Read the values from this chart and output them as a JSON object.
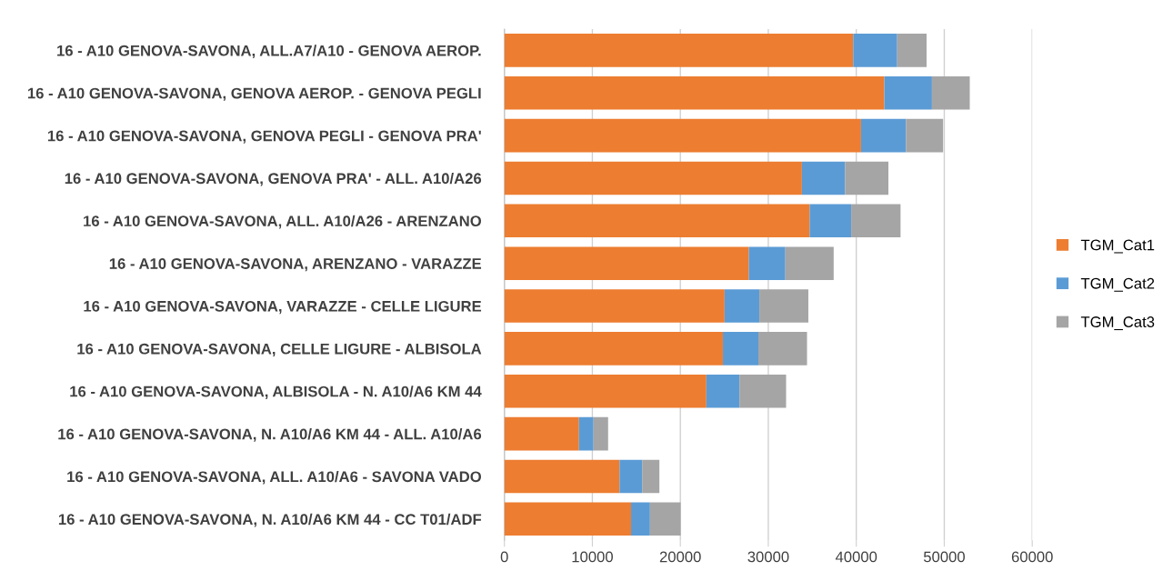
{
  "chart_data": {
    "type": "bar",
    "orientation": "horizontal",
    "stacked": true,
    "categories": [
      "16 - A10 GENOVA-SAVONA, ALL.A7/A10 - GENOVA AEROP.",
      "16 - A10 GENOVA-SAVONA, GENOVA AEROP. - GENOVA PEGLI",
      "16 - A10 GENOVA-SAVONA, GENOVA PEGLI - GENOVA PRA'",
      "16 - A10 GENOVA-SAVONA, GENOVA PRA' - ALL. A10/A26",
      "16 - A10 GENOVA-SAVONA, ALL. A10/A26 - ARENZANO",
      "16 - A10 GENOVA-SAVONA, ARENZANO - VARAZZE",
      "16 - A10 GENOVA-SAVONA, VARAZZE - CELLE LIGURE",
      "16 - A10 GENOVA-SAVONA, CELLE LIGURE - ALBISOLA",
      "16 - A10 GENOVA-SAVONA, ALBISOLA - N. A10/A6 KM 44",
      "16 - A10 GENOVA-SAVONA, N. A10/A6 KM 44 - ALL. A10/A6",
      "16 - A10 GENOVA-SAVONA, ALL. A10/A6 - SAVONA VADO",
      "16 - A10 GENOVA-SAVONA, N. A10/A6 KM 44 - CC T01/ADF"
    ],
    "series": [
      {
        "name": "TGM_Cat1",
        "color": "#ed7d31",
        "values": [
          39650,
          43190,
          40540,
          33820,
          34700,
          27790,
          25030,
          24840,
          22960,
          8480,
          13090,
          14400
        ]
      },
      {
        "name": "TGM_Cat2",
        "color": "#5b9bd5",
        "values": [
          5000,
          5410,
          5100,
          4910,
          4720,
          4150,
          3950,
          4030,
          3760,
          1650,
          2570,
          2150
        ]
      },
      {
        "name": "TGM_Cat3",
        "color": "#a5a5a5",
        "values": [
          3340,
          4300,
          4230,
          4920,
          5610,
          5490,
          5570,
          5530,
          5300,
          1660,
          1960,
          3490
        ]
      }
    ],
    "xlim": [
      0,
      60000
    ],
    "xticks": [
      0,
      10000,
      20000,
      30000,
      40000,
      50000,
      60000
    ],
    "grid": "x",
    "legend": "right"
  }
}
